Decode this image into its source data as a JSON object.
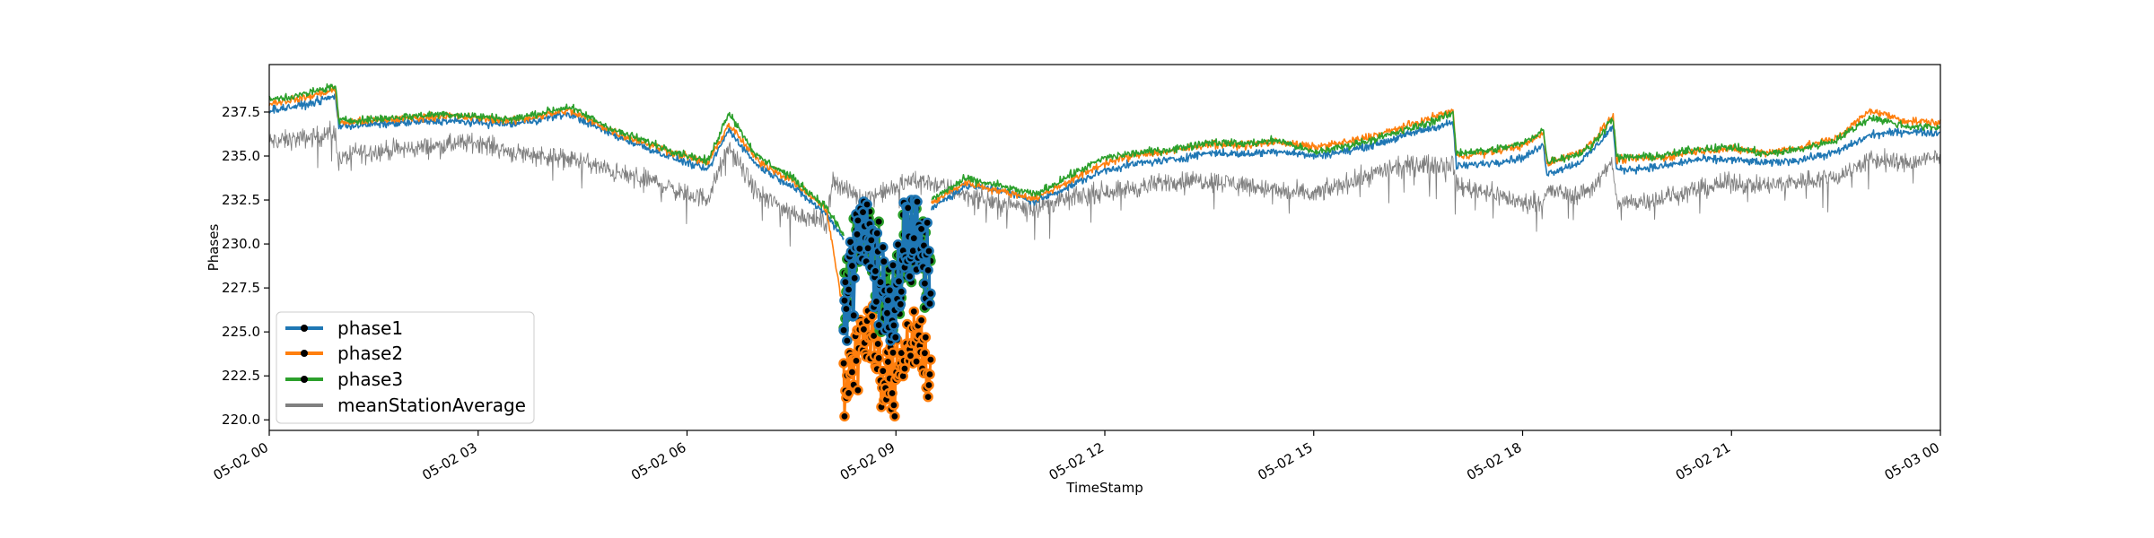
{
  "chart_data": {
    "type": "line",
    "title": "",
    "xlabel": "TimeStamp",
    "ylabel": "Phases",
    "x_range": [
      "05-02 00:00",
      "05-03 00:00"
    ],
    "ylim": [
      219.4,
      240.2
    ],
    "x_ticks": [
      "05-02 00",
      "05-02 03",
      "05-02 06",
      "05-02 09",
      "05-02 12",
      "05-02 15",
      "05-02 18",
      "05-02 21",
      "05-03 00"
    ],
    "x_tick_hours": [
      0,
      3,
      6,
      9,
      12,
      15,
      18,
      21,
      24
    ],
    "y_ticks": [
      "220.0",
      "222.5",
      "225.0",
      "227.5",
      "230.0",
      "232.5",
      "235.0",
      "237.5"
    ],
    "y_tick_values": [
      220.0,
      222.5,
      225.0,
      227.5,
      230.0,
      232.5,
      235.0,
      237.5
    ],
    "grid": false,
    "legend_position": "bottom-left",
    "legend": [
      "phase1",
      "phase2",
      "phase3",
      "meanStationAverage"
    ],
    "colors": {
      "phase1": "#1f77b4",
      "phase2": "#ff7f0e",
      "phase3": "#2ca02c",
      "meanStationAverage": "#808080"
    },
    "series": [
      {
        "name": "phase1",
        "color": "#1f77b4",
        "x_hours": [
          0,
          0.5,
          0.95,
          1.0,
          1.5,
          2.5,
          3.5,
          4.3,
          5.0,
          5.8,
          6.3,
          6.6,
          7.0,
          7.5,
          8.0,
          8.4,
          8.8,
          9.1,
          9.5,
          10.0,
          10.5,
          11.0,
          11.5,
          12.0,
          12.5,
          13.0,
          13.5,
          14.0,
          14.5,
          15.0,
          15.5,
          16.0,
          16.5,
          17.0,
          17.05,
          17.5,
          18.0,
          18.3,
          18.35,
          18.8,
          19.0,
          19.3,
          19.35,
          20.0,
          20.5,
          21.0,
          21.5,
          22.0,
          22.5,
          23.0,
          23.5,
          24.0
        ],
        "y": [
          237.6,
          237.9,
          238.4,
          236.7,
          236.8,
          237.0,
          236.8,
          237.4,
          236.1,
          234.9,
          234.2,
          236.5,
          234.5,
          233.3,
          231.7,
          229.5,
          228.5,
          229.5,
          232.0,
          233.3,
          233.1,
          232.4,
          233.3,
          234.2,
          234.6,
          234.8,
          235.2,
          235.1,
          235.3,
          235.0,
          235.3,
          235.8,
          236.4,
          236.9,
          234.4,
          234.6,
          234.9,
          235.6,
          234.0,
          234.6,
          235.3,
          236.7,
          234.2,
          234.4,
          234.8,
          234.8,
          234.6,
          234.8,
          235.2,
          236.2,
          236.4,
          236.3
        ]
      },
      {
        "name": "phase2",
        "color": "#ff7f0e",
        "x_hours": [
          0,
          0.5,
          0.95,
          1.0,
          1.5,
          2.5,
          3.5,
          4.3,
          5.0,
          5.8,
          6.3,
          6.6,
          7.0,
          7.5,
          8.0,
          8.4,
          8.8,
          9.1,
          9.5,
          10.0,
          10.5,
          11.0,
          11.5,
          12.0,
          12.5,
          13.0,
          13.5,
          14.0,
          14.5,
          15.0,
          15.5,
          16.0,
          16.5,
          17.0,
          17.05,
          17.5,
          18.0,
          18.3,
          18.35,
          18.8,
          19.0,
          19.3,
          19.35,
          20.0,
          20.5,
          21.0,
          21.5,
          22.0,
          22.5,
          23.0,
          23.5,
          24.0
        ],
        "y": [
          238.0,
          238.3,
          238.8,
          236.9,
          237.0,
          237.3,
          237.0,
          237.6,
          236.3,
          235.2,
          234.6,
          236.8,
          234.8,
          233.6,
          232.0,
          222.5,
          222.3,
          222.8,
          232.3,
          233.5,
          233.0,
          232.6,
          233.6,
          234.6,
          235.1,
          235.3,
          235.7,
          235.6,
          235.8,
          235.5,
          235.8,
          236.3,
          236.9,
          237.6,
          235.0,
          235.2,
          235.6,
          236.3,
          234.6,
          235.2,
          235.8,
          237.3,
          234.8,
          234.9,
          235.3,
          235.4,
          235.2,
          235.5,
          236.0,
          237.6,
          237.0,
          236.9
        ]
      },
      {
        "name": "phase3",
        "color": "#2ca02c",
        "x_hours": [
          0,
          0.5,
          0.95,
          1.0,
          1.5,
          2.5,
          3.5,
          4.3,
          5.0,
          5.8,
          6.3,
          6.6,
          7.0,
          7.5,
          8.0,
          8.4,
          8.8,
          9.1,
          9.5,
          10.0,
          10.5,
          11.0,
          11.5,
          12.0,
          12.5,
          13.0,
          13.5,
          14.0,
          14.5,
          15.0,
          15.5,
          16.0,
          16.5,
          17.0,
          17.05,
          17.5,
          18.0,
          18.3,
          18.35,
          18.8,
          19.0,
          19.3,
          19.35,
          20.0,
          20.5,
          21.0,
          21.5,
          22.0,
          22.5,
          23.0,
          23.5,
          24.0
        ],
        "y": [
          238.2,
          238.5,
          239.0,
          237.0,
          237.1,
          237.4,
          237.1,
          237.8,
          236.4,
          235.3,
          234.7,
          237.5,
          235.0,
          233.8,
          232.1,
          229.5,
          229.8,
          228.0,
          232.5,
          233.7,
          233.3,
          232.8,
          233.9,
          234.9,
          235.2,
          235.4,
          235.8,
          235.7,
          235.9,
          235.2,
          235.6,
          236.1,
          236.7,
          237.4,
          235.2,
          235.3,
          235.7,
          236.5,
          234.7,
          235.1,
          235.6,
          237.2,
          234.9,
          235.0,
          235.4,
          235.5,
          235.1,
          235.4,
          235.9,
          237.2,
          236.7,
          236.6
        ]
      },
      {
        "name": "meanStationAverage",
        "color": "#808080",
        "x_hours": [
          0,
          0.5,
          0.95,
          1.0,
          1.2,
          2.0,
          2.5,
          3.0,
          3.5,
          4.0,
          4.5,
          5.0,
          5.5,
          6.0,
          6.3,
          6.6,
          7.0,
          7.5,
          8.0,
          8.1,
          8.3,
          8.5,
          8.8,
          9.0,
          9.2,
          9.5,
          10.0,
          10.5,
          11.0,
          11.5,
          12.0,
          12.5,
          13.0,
          13.5,
          14.0,
          14.5,
          15.0,
          15.5,
          16.0,
          16.5,
          17.0,
          17.05,
          17.5,
          18.0,
          18.3,
          18.35,
          18.8,
          19.0,
          19.3,
          19.35,
          20.0,
          20.5,
          21.0,
          21.5,
          22.0,
          22.5,
          23.0,
          23.5,
          24.0
        ],
        "y": [
          235.8,
          236.0,
          236.3,
          234.7,
          235.2,
          235.4,
          235.6,
          235.8,
          235.2,
          235.0,
          234.7,
          234.0,
          233.6,
          232.8,
          232.6,
          235.5,
          232.9,
          231.8,
          231.2,
          233.7,
          233.0,
          232.6,
          232.9,
          233.2,
          233.6,
          233.5,
          232.8,
          232.3,
          232.1,
          232.6,
          233.0,
          233.2,
          233.6,
          233.6,
          233.4,
          233.0,
          232.8,
          233.5,
          234.2,
          234.5,
          234.6,
          233.3,
          233.0,
          232.3,
          232.5,
          233.0,
          232.8,
          233.2,
          234.6,
          232.3,
          232.6,
          233.1,
          233.5,
          233.3,
          233.6,
          233.8,
          234.8,
          234.6,
          234.9
        ]
      }
    ],
    "marker_points": {
      "x_range_hours": [
        8.25,
        9.5
      ],
      "phase1": {
        "ylim": [
          224.5,
          232.5
        ]
      },
      "phase2": {
        "ylim": [
          220.2,
          226.5
        ]
      },
      "phase3": {
        "ylim": [
          225.0,
          232.0
        ]
      }
    }
  }
}
